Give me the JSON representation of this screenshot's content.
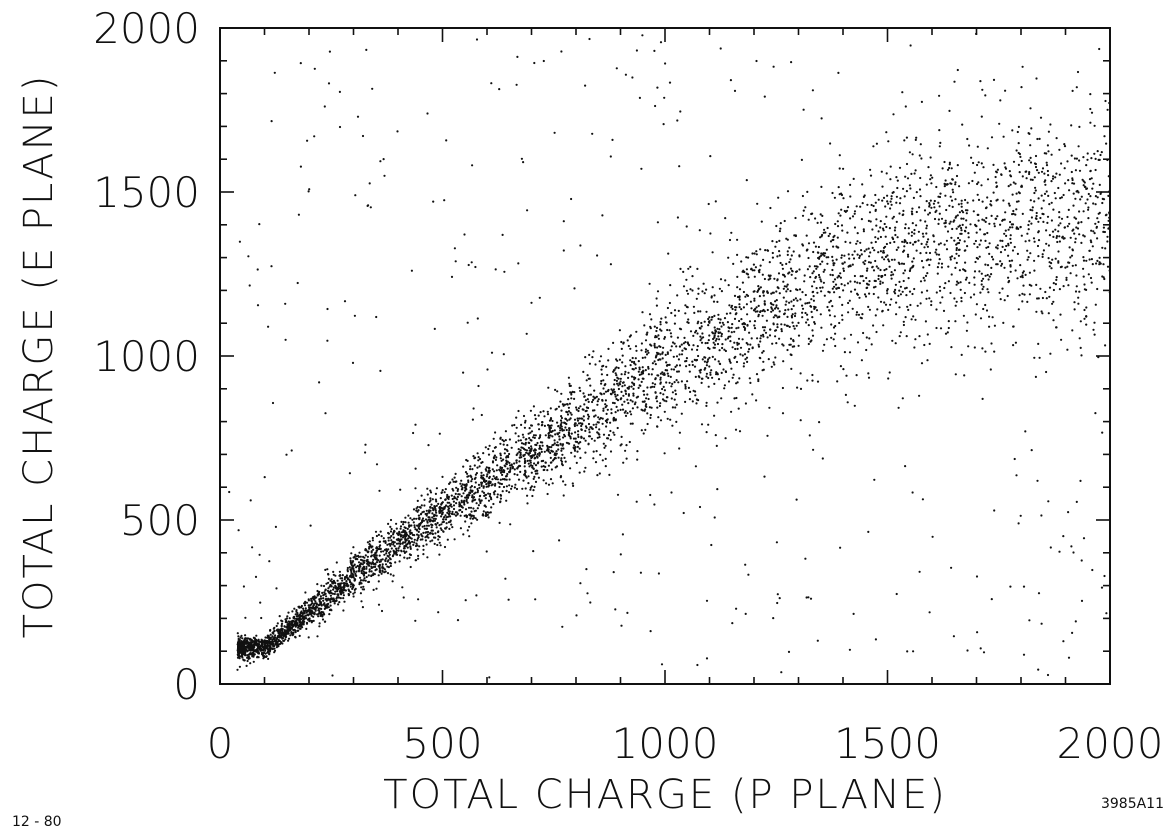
{
  "chart_data": {
    "type": "scatter",
    "xlabel": "TOTAL CHARGE   (P PLANE)",
    "ylabel": "TOTAL CHARGE   (E PLANE)",
    "xlim": [
      0,
      2000
    ],
    "ylim": [
      0,
      2000
    ],
    "x_ticks": [
      0,
      500,
      1000,
      1500,
      2000
    ],
    "y_ticks": [
      0,
      500,
      1000,
      1500,
      2000
    ],
    "x_tick_labels": [
      "0",
      "500",
      "1000",
      "1500",
      "2000"
    ],
    "y_tick_labels": [
      "0",
      "500",
      "1000",
      "1500",
      "2000"
    ],
    "minor_tick_step": 100,
    "grid": false,
    "point_color": "#111111",
    "density_profile": {
      "description_points": [
        {
          "x": 100,
          "y_center": 110,
          "y_spread": 30
        },
        {
          "x": 300,
          "y_center": 330,
          "y_spread": 60
        },
        {
          "x": 500,
          "y_center": 520,
          "y_spread": 80
        },
        {
          "x": 700,
          "y_center": 700,
          "y_spread": 110
        },
        {
          "x": 900,
          "y_center": 880,
          "y_spread": 150
        },
        {
          "x": 1100,
          "y_center": 1060,
          "y_spread": 190
        },
        {
          "x": 1300,
          "y_center": 1200,
          "y_spread": 230
        },
        {
          "x": 1500,
          "y_center": 1320,
          "y_spread": 270
        },
        {
          "x": 1700,
          "y_center": 1380,
          "y_spread": 300
        },
        {
          "x": 1900,
          "y_center": 1400,
          "y_spread": 320
        }
      ],
      "n_points": 5200,
      "background_points": 420
    }
  },
  "notes": {
    "date_code": "12 - 80",
    "figure_id": "3985A11"
  }
}
